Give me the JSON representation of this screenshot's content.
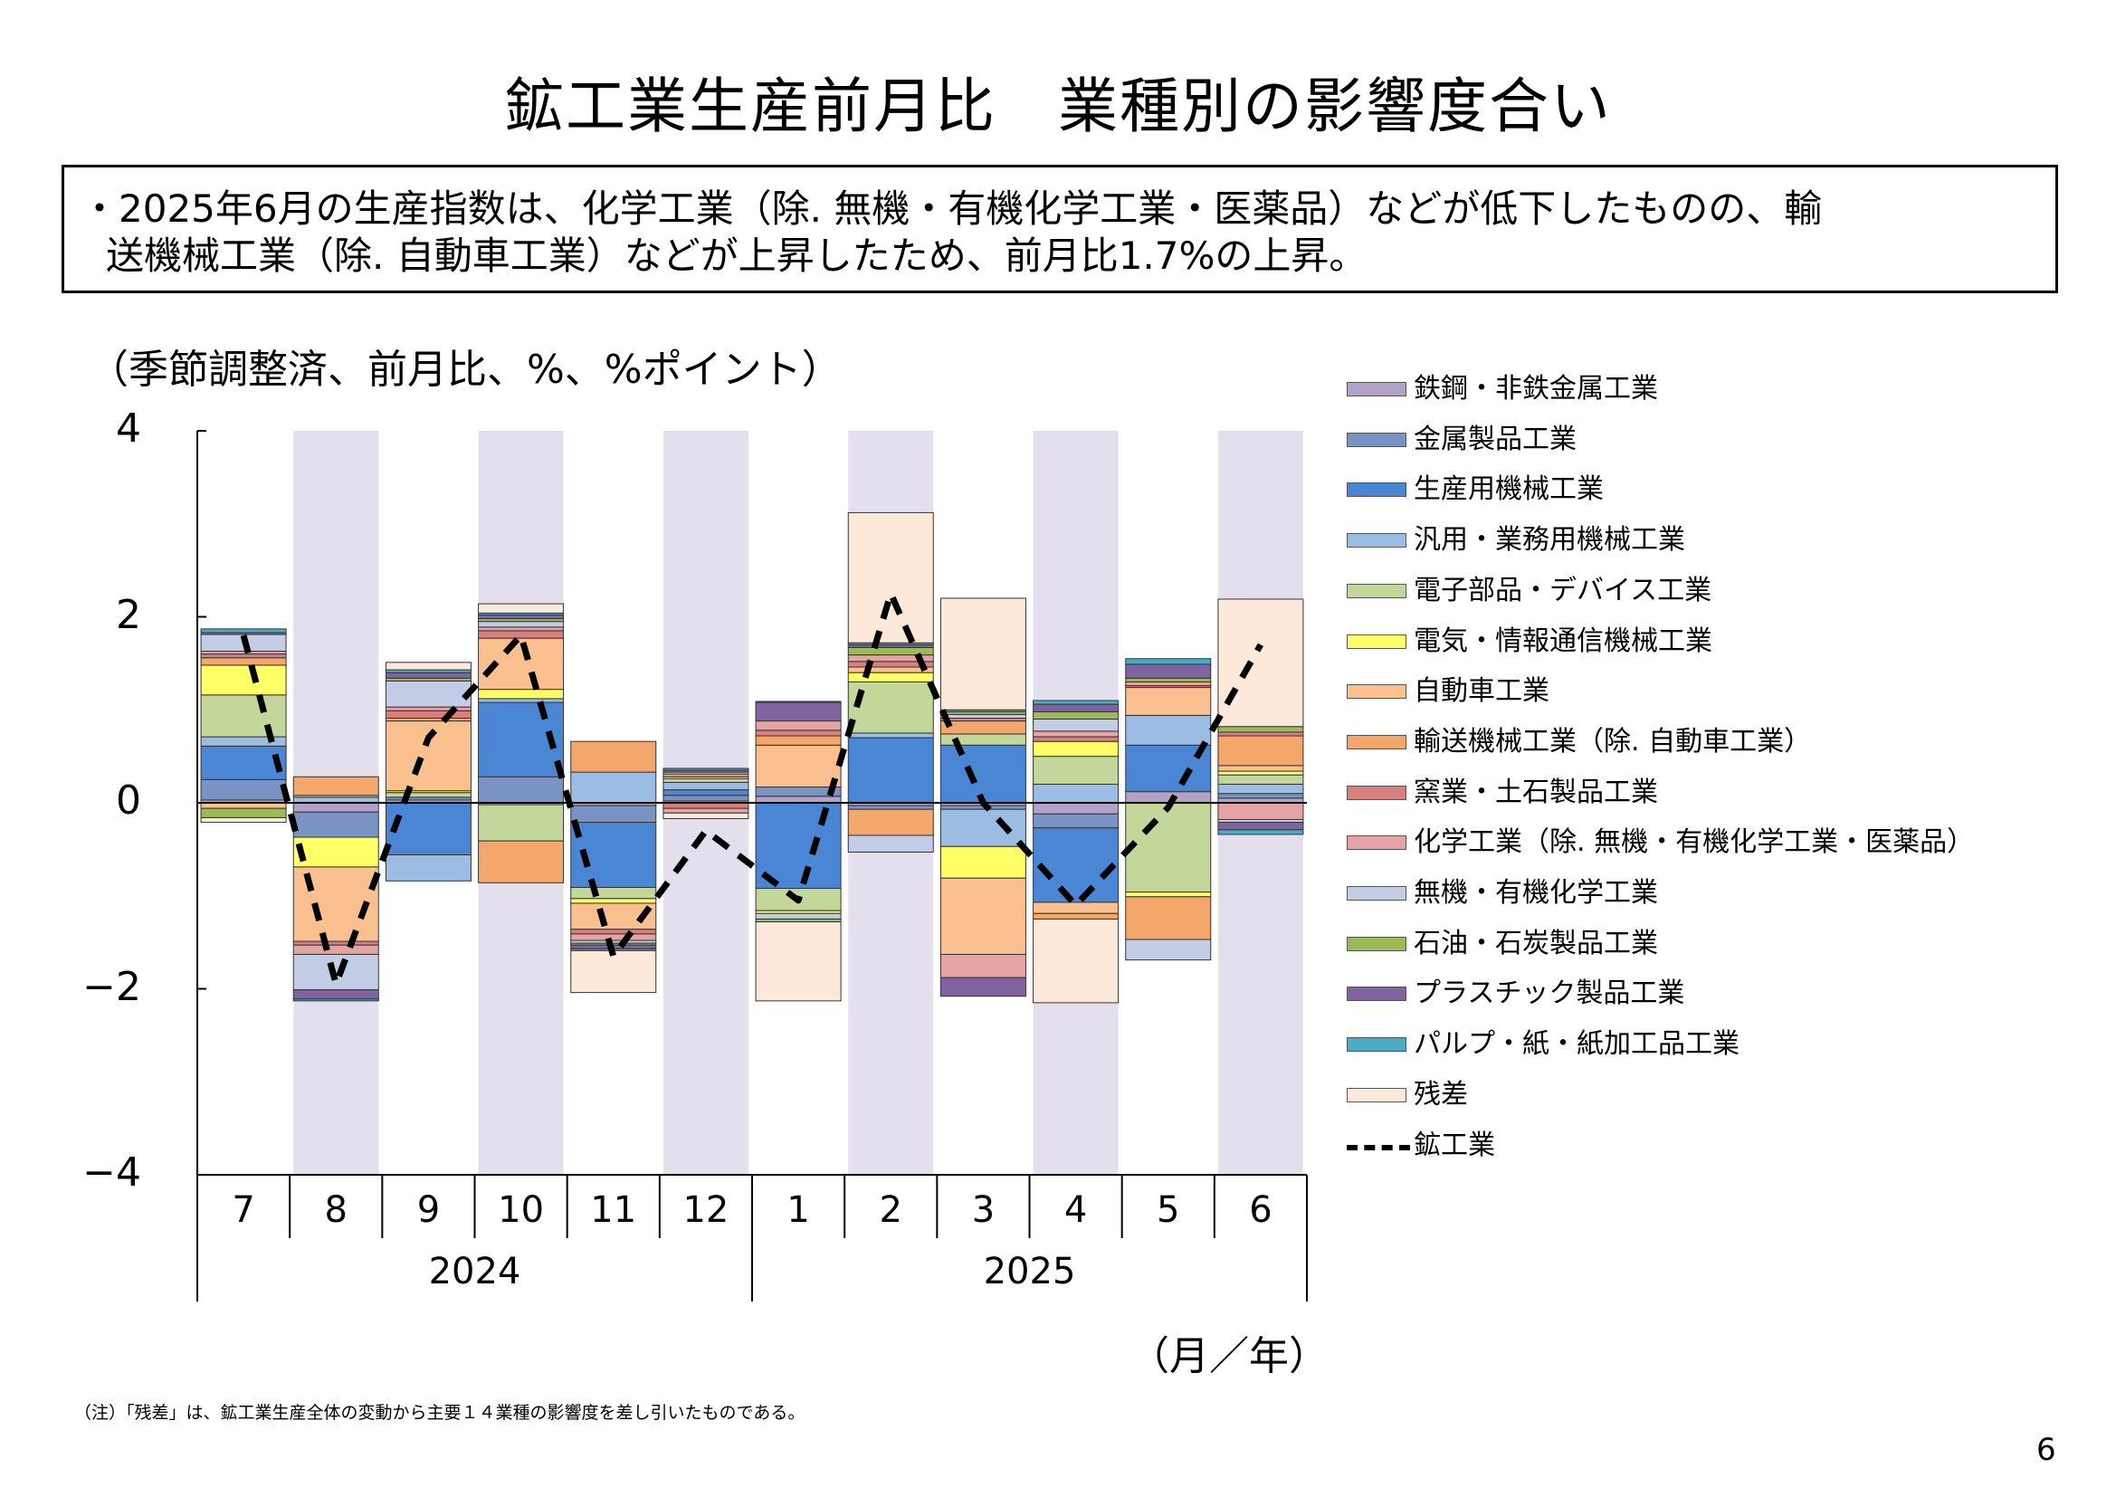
{
  "title": "鉱工業生産前月比　業種別の影響度合い",
  "summary": {
    "line1": "・2025年6月の生産指数は、化学工業（除. 無機・有機化学工業・医薬品）などが低下したものの、輸",
    "line2": "送機械工業（除. 自動車工業）などが上昇したため、前月比1.7%の上昇。"
  },
  "unit_label": "（季節調整済、前月比、%、%ポイント）",
  "x_unit_label": "（月／年）",
  "note": "（注）「残差」は、鉱工業生産全体の変動から主要１４業種の影響度を差し引いたものである。",
  "page_number": "6",
  "chart_data": {
    "type": "bar",
    "stacked": true,
    "categories": [
      "7",
      "8",
      "9",
      "10",
      "11",
      "12",
      "1",
      "2",
      "3",
      "4",
      "5",
      "6"
    ],
    "year_labels": [
      {
        "label": "2024",
        "months": [
          "7",
          "8",
          "9",
          "10",
          "11",
          "12"
        ]
      },
      {
        "label": "2025",
        "months": [
          "1",
          "2",
          "3",
          "4",
          "5",
          "6"
        ]
      }
    ],
    "ylim": [
      -4,
      4
    ],
    "yticks": [
      "4",
      "2",
      "0",
      "−2",
      "−4"
    ],
    "ytick_values": [
      4,
      2,
      0,
      -2,
      -4
    ],
    "shaded_categories": [
      "8",
      "10",
      "12",
      "2",
      "4",
      "6"
    ],
    "shade_color": "#e4dfec",
    "series": [
      {
        "name": "鉄鋼・非鉄金属工業",
        "color": "#b3a2c7",
        "values": [
          0.03,
          -0.1,
          0.03,
          -0.02,
          -0.03,
          0.02,
          0.07,
          -0.03,
          -0.03,
          -0.12,
          0.12,
          0.05
        ]
      },
      {
        "name": "金属製品工業",
        "color": "#7a93c5",
        "values": [
          0.22,
          -0.27,
          0.03,
          0.28,
          -0.18,
          0.06,
          0.1,
          -0.04,
          -0.04,
          -0.15,
          0.0,
          0.05
        ]
      },
      {
        "name": "生産用機械工業",
        "color": "#4a86d4",
        "values": [
          0.36,
          0.0,
          -0.56,
          0.8,
          -0.7,
          0.06,
          -0.92,
          0.7,
          0.62,
          -0.8,
          0.5,
          0.0
        ]
      },
      {
        "name": "汎用・業務用機械工業",
        "color": "#9bbde3",
        "values": [
          0.1,
          0.06,
          -0.28,
          0.04,
          0.33,
          0.08,
          0.0,
          0.05,
          -0.4,
          0.2,
          0.32,
          0.1
        ]
      },
      {
        "name": "電子部品・デバイス工業",
        "color": "#c4d79b",
        "values": [
          0.45,
          0.02,
          0.05,
          -0.39,
          -0.12,
          0.04,
          -0.24,
          0.55,
          0.12,
          0.3,
          -0.96,
          0.1
        ]
      },
      {
        "name": "電気・情報通信機械工業",
        "color": "#ffff66",
        "values": [
          0.32,
          -0.32,
          0.02,
          0.1,
          -0.05,
          0.02,
          -0.03,
          0.1,
          -0.34,
          0.16,
          -0.05,
          0.04
        ]
      },
      {
        "name": "自動車工業",
        "color": "#fac090",
        "values": [
          -0.06,
          -0.8,
          0.75,
          0.55,
          -0.28,
          0.0,
          0.45,
          0.06,
          -0.82,
          -0.12,
          0.3,
          0.06
        ]
      },
      {
        "name": "輸送機械工業（除. 自動車工業）",
        "color": "#f4a76a",
        "values": [
          0.08,
          0.2,
          0.03,
          -0.45,
          0.33,
          0.03,
          0.1,
          -0.28,
          0.14,
          -0.06,
          -0.46,
          0.32
        ]
      },
      {
        "name": "窯業・土石製品工業",
        "color": "#d87f7f",
        "values": [
          0.04,
          -0.04,
          0.08,
          0.08,
          -0.05,
          -0.06,
          0.06,
          0.06,
          0.03,
          0.05,
          0.02,
          0.04
        ]
      },
      {
        "name": "化学工業（除. 無機・有機化学工業・医薬品）",
        "color": "#e6a3a3",
        "values": [
          0.03,
          -0.1,
          0.04,
          0.04,
          -0.07,
          -0.05,
          0.1,
          0.07,
          -0.25,
          0.06,
          0.04,
          -0.18
        ]
      },
      {
        "name": "無機・有機化学工業",
        "color": "#c3cde6",
        "values": [
          0.18,
          -0.38,
          0.28,
          0.06,
          -0.03,
          0.02,
          -0.06,
          -0.18,
          0.04,
          0.13,
          -0.22,
          -0.03
        ]
      },
      {
        "name": "石油・石炭製品工業",
        "color": "#9bbb59",
        "values": [
          -0.1,
          0.0,
          0.03,
          0.03,
          -0.02,
          0.0,
          -0.03,
          0.08,
          0.03,
          0.08,
          0.04,
          0.06
        ]
      },
      {
        "name": "プラスチック製品工業",
        "color": "#8064a2",
        "values": [
          0.02,
          -0.1,
          0.06,
          0.04,
          -0.04,
          0.02,
          0.2,
          0.03,
          -0.2,
          0.08,
          0.15,
          -0.08
        ]
      },
      {
        "name": "パルプ・紙・紙加工品工業",
        "color": "#4bacc6",
        "values": [
          0.04,
          -0.02,
          0.03,
          0.02,
          -0.02,
          0.02,
          0.01,
          0.02,
          0.02,
          0.04,
          0.06,
          -0.05
        ]
      },
      {
        "name": "残差",
        "color": "#fde9d9",
        "values": [
          -0.05,
          0.0,
          0.08,
          0.1,
          -0.45,
          -0.06,
          -0.85,
          1.4,
          1.2,
          -0.9,
          0.0,
          1.37
        ]
      }
    ],
    "line": {
      "name": "鉱工業",
      "values": [
        1.8,
        -1.95,
        0.7,
        1.8,
        -1.65,
        -0.3,
        -1.05,
        2.25,
        0.0,
        -1.1,
        -0.05,
        1.7
      ]
    }
  }
}
